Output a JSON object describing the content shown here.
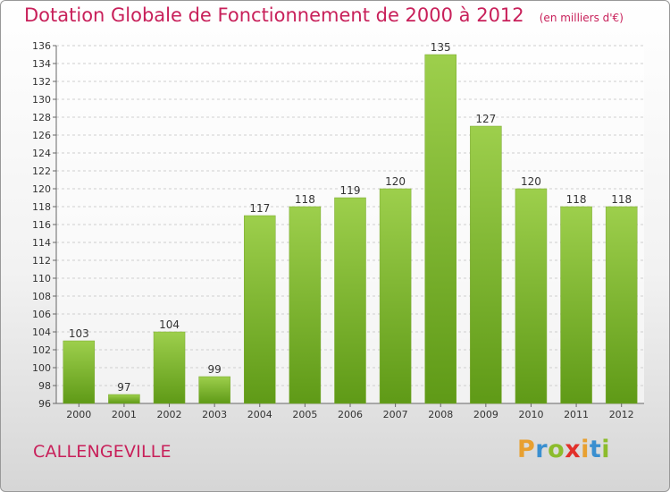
{
  "header": {
    "title": "Dotation Globale de Fonctionnement de 2000 à 2012",
    "unit": "(en milliers d'€)"
  },
  "footer": {
    "commune": "CALLENGEVILLE",
    "logo_letters": [
      "P",
      "r",
      "o",
      "x",
      "i",
      "t",
      "i"
    ],
    "logo_colors": [
      "#e8a030",
      "#3a8fd0",
      "#8cbc2c",
      "#e2302a",
      "#e8a030",
      "#3a8fd0",
      "#8cbc2c"
    ]
  },
  "colors": {
    "accent": "#c8205a",
    "bar_top": "#9dcf4c",
    "bar_bottom": "#5f9a17",
    "grid": "#cfcfcf",
    "axis_text": "#333333"
  },
  "chart_data": {
    "type": "bar",
    "title": "Dotation Globale de Fonctionnement de 2000 à 2012",
    "subtitle": "(en milliers d'€)",
    "xlabel": "",
    "ylabel": "",
    "categories": [
      "2000",
      "2001",
      "2002",
      "2003",
      "2004",
      "2005",
      "2006",
      "2007",
      "2008",
      "2009",
      "2010",
      "2011",
      "2012"
    ],
    "values": [
      103,
      97,
      104,
      99,
      117,
      118,
      119,
      120,
      135,
      127,
      120,
      118,
      118
    ],
    "ylim": [
      96,
      136
    ],
    "ytick_step": 2,
    "grid": true,
    "legend": "none"
  }
}
